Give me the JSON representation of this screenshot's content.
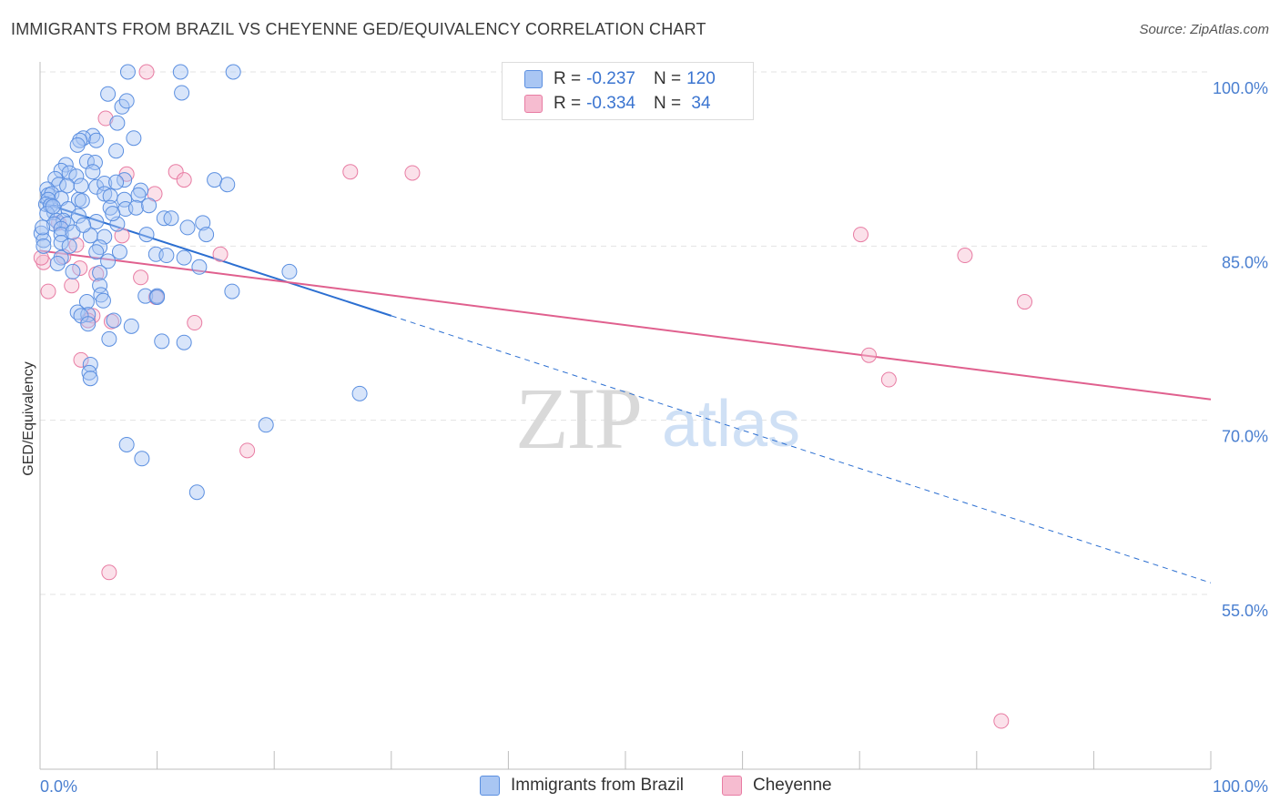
{
  "header": {
    "title": "IMMIGRANTS FROM BRAZIL VS CHEYENNE GED/EQUIVALENCY CORRELATION CHART",
    "source": "Source: ZipAtlas.com"
  },
  "legend": {
    "rows": [
      {
        "r_label": "R =",
        "r_value": "-0.237",
        "n_label": "N =",
        "n_value": "120"
      },
      {
        "r_label": "R =",
        "r_value": "-0.334",
        "n_label": "N =",
        "n_value": " 34"
      }
    ]
  },
  "watermark": {
    "zip": "ZIP",
    "atlas": "atlas"
  },
  "colors": {
    "blue": "#5b8fe0",
    "blue_fill": "#a9c6f3",
    "blue_line": "#2c6fd1",
    "pink": "#e87ca3",
    "pink_fill": "#f6bcd0",
    "pink_line": "#e0608e",
    "tick_text": "#4a7fd0"
  },
  "chart_data": {
    "type": "scatter",
    "title": "IMMIGRANTS FROM BRAZIL VS CHEYENNE GED/EQUIVALENCY CORRELATION CHART",
    "xlabel": "",
    "ylabel": "GED/Equivalency",
    "xlim": [
      0,
      100
    ],
    "ylim": [
      42,
      102
    ],
    "x_tick_labels": [
      "0.0%",
      "100.0%"
    ],
    "y_ticks": [
      55,
      70,
      85,
      100
    ],
    "y_tick_labels": [
      "55.0%",
      "70.0%",
      "85.0%",
      "100.0%"
    ],
    "legend_position": "bottom-center",
    "series": [
      {
        "name": "Immigrants from Brazil",
        "r": -0.237,
        "n": 120,
        "trend": {
          "x0": 0,
          "y0": 88.8,
          "x1": 30,
          "y1": 79.0,
          "dash_to_x": 100,
          "dash_to_y": 56.0
        },
        "points": [
          [
            7.5,
            100
          ],
          [
            12,
            100
          ],
          [
            16.5,
            100
          ],
          [
            5.8,
            98.1
          ],
          [
            12.1,
            98.2
          ],
          [
            7,
            97
          ],
          [
            7.4,
            97.5
          ],
          [
            8,
            94.3
          ],
          [
            4.5,
            94.5
          ],
          [
            3.7,
            94.3
          ],
          [
            6.6,
            95.6
          ],
          [
            3.4,
            94.1
          ],
          [
            4.8,
            94.1
          ],
          [
            3.2,
            93.7
          ],
          [
            6.5,
            93.2
          ],
          [
            2.2,
            92.0
          ],
          [
            4,
            92.3
          ],
          [
            4.7,
            92.2
          ],
          [
            1.8,
            91.5
          ],
          [
            4.5,
            91.4
          ],
          [
            2.5,
            91.3
          ],
          [
            3.1,
            91
          ],
          [
            1.3,
            90.8
          ],
          [
            1.6,
            90.3
          ],
          [
            0.6,
            89.9
          ],
          [
            0.7,
            89.4
          ],
          [
            2.3,
            90.2
          ],
          [
            3.5,
            90.2
          ],
          [
            4.8,
            90.1
          ],
          [
            5.5,
            90.4
          ],
          [
            7.2,
            90.7
          ],
          [
            6.5,
            90.5
          ],
          [
            14.9,
            90.7
          ],
          [
            16,
            90.3
          ],
          [
            1,
            89.5
          ],
          [
            1.8,
            89.1
          ],
          [
            0.7,
            89
          ],
          [
            0.5,
            88.6
          ],
          [
            3.3,
            89
          ],
          [
            5.5,
            89.5
          ],
          [
            6,
            89.3
          ],
          [
            8.6,
            89.8
          ],
          [
            8.4,
            89.4
          ],
          [
            7.2,
            89
          ],
          [
            0.9,
            88.5
          ],
          [
            2.4,
            88.2
          ],
          [
            3.6,
            88.9
          ],
          [
            6,
            88.3
          ],
          [
            7.3,
            88.2
          ],
          [
            8.2,
            88.3
          ],
          [
            1.2,
            87.9
          ],
          [
            0.6,
            87.8
          ],
          [
            3.3,
            87.6
          ],
          [
            1.4,
            87.2
          ],
          [
            2,
            87.2
          ],
          [
            2.3,
            86.9
          ],
          [
            1.2,
            86.9
          ],
          [
            4.8,
            87.1
          ],
          [
            10.6,
            87.4
          ],
          [
            11.2,
            87.4
          ],
          [
            13.9,
            87
          ],
          [
            6.6,
            86.9
          ],
          [
            12.6,
            86.6
          ],
          [
            1.8,
            86.5
          ],
          [
            1.8,
            86.0
          ],
          [
            0.1,
            86.1
          ],
          [
            4.3,
            85.9
          ],
          [
            5.5,
            85.8
          ],
          [
            9.1,
            86
          ],
          [
            14.2,
            86
          ],
          [
            0.3,
            85.5
          ],
          [
            1.8,
            85.3
          ],
          [
            5.1,
            84.9
          ],
          [
            6.8,
            84.5
          ],
          [
            9.9,
            84.3
          ],
          [
            12.3,
            84
          ],
          [
            1.8,
            84
          ],
          [
            4.8,
            84.5
          ],
          [
            5.8,
            83.7
          ],
          [
            13.6,
            83.2
          ],
          [
            21.3,
            82.8
          ],
          [
            2.8,
            82.8
          ],
          [
            5.1,
            82.7
          ],
          [
            5.1,
            81.6
          ],
          [
            16.4,
            81.1
          ],
          [
            5.2,
            80.8
          ],
          [
            9.0,
            80.7
          ],
          [
            10,
            80.7
          ],
          [
            10,
            80.6
          ],
          [
            4.0,
            80.2
          ],
          [
            5.4,
            80.3
          ],
          [
            3.2,
            79.3
          ],
          [
            4.1,
            79.1
          ],
          [
            3.5,
            79
          ],
          [
            6.3,
            78.6
          ],
          [
            4.1,
            78.3
          ],
          [
            7.8,
            78.1
          ],
          [
            5.9,
            77.0
          ],
          [
            10.4,
            76.8
          ],
          [
            12.3,
            76.7
          ],
          [
            4.3,
            74.8
          ],
          [
            4.2,
            74.1
          ],
          [
            4.3,
            73.6
          ],
          [
            27.3,
            72.3
          ],
          [
            19.3,
            69.6
          ],
          [
            7.4,
            67.9
          ],
          [
            8.7,
            66.7
          ],
          [
            13.4,
            63.8
          ],
          [
            0.3,
            85
          ],
          [
            0.2,
            86.6
          ],
          [
            1.1,
            88.4
          ],
          [
            2.8,
            86.2
          ],
          [
            3.7,
            86.8
          ],
          [
            6.2,
            87.8
          ],
          [
            9.3,
            88.5
          ],
          [
            10.8,
            84.2
          ],
          [
            2.5,
            85.0
          ],
          [
            1.5,
            83.5
          ]
        ]
      },
      {
        "name": "Cheyenne",
        "r": -0.334,
        "n": 34,
        "trend": {
          "x0": 0,
          "y0": 84.6,
          "x1": 100,
          "y1": 71.8
        },
        "points": [
          [
            9.1,
            100
          ],
          [
            5.6,
            96
          ],
          [
            7.4,
            91.2
          ],
          [
            11.6,
            91.4
          ],
          [
            12.3,
            90.7
          ],
          [
            26.5,
            91.4
          ],
          [
            31.8,
            91.3
          ],
          [
            9.8,
            89.5
          ],
          [
            1.6,
            87
          ],
          [
            3.1,
            85.1
          ],
          [
            7,
            85.9
          ],
          [
            15.4,
            84.3
          ],
          [
            2,
            84.1
          ],
          [
            3.4,
            83.1
          ],
          [
            4.8,
            82.6
          ],
          [
            8.6,
            82.3
          ],
          [
            2.7,
            81.6
          ],
          [
            0.7,
            81.1
          ],
          [
            9.9,
            80.6
          ],
          [
            4.5,
            79
          ],
          [
            4.1,
            78.6
          ],
          [
            6.1,
            78.5
          ],
          [
            13.2,
            78.4
          ],
          [
            3.5,
            75.2
          ],
          [
            70.8,
            75.6
          ],
          [
            72.5,
            73.5
          ],
          [
            17.7,
            67.4
          ],
          [
            5.9,
            56.9
          ],
          [
            70.1,
            86
          ],
          [
            79,
            84.2
          ],
          [
            84.1,
            80.2
          ],
          [
            82.1,
            44.1
          ],
          [
            0.3,
            83.6
          ],
          [
            0.1,
            84.0
          ]
        ]
      }
    ]
  }
}
